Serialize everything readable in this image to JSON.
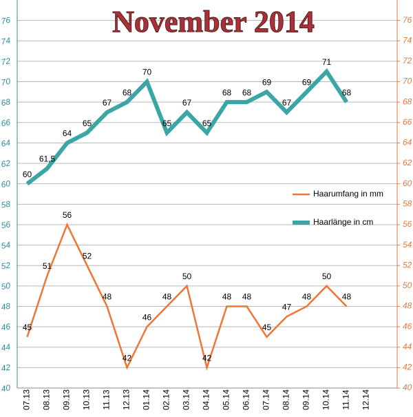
{
  "chart_data": {
    "type": "line",
    "title": "November 2014",
    "categories": [
      "07.13",
      "08.13",
      "09.13",
      "10.13",
      "11.13",
      "12.13",
      "01.14",
      "02.14",
      "03.14",
      "04.14",
      "05.14",
      "06.14",
      "07.14",
      "08.14",
      "09.14",
      "10.14",
      "11.14",
      "12.14"
    ],
    "series": [
      {
        "name": "Haarumfang in mm",
        "color": "#f07432",
        "axis": "y2",
        "values": [
          45,
          51,
          56,
          52,
          48,
          42,
          46,
          48,
          50,
          42,
          48,
          48,
          45,
          47,
          48,
          50,
          48,
          null
        ]
      },
      {
        "name": "Haarlänge in cm",
        "color": "#3aa6a6",
        "values": [
          60,
          61.5,
          64,
          65,
          67,
          68,
          70,
          65,
          67,
          65,
          68,
          68,
          69,
          67,
          69,
          71,
          68,
          null
        ],
        "value_labels": [
          "60",
          "61,5",
          "64",
          "65",
          "67",
          "68",
          "70",
          "65",
          "67",
          "65",
          "68",
          "68",
          "69",
          "67",
          "69",
          "71",
          "68",
          null
        ]
      }
    ],
    "ylim": [
      40,
      78
    ],
    "yticks": [
      40,
      42,
      44,
      46,
      48,
      50,
      52,
      54,
      56,
      58,
      60,
      62,
      64,
      66,
      68,
      70,
      72,
      74,
      76
    ],
    "y2lim": [
      40,
      78
    ],
    "y2ticks": [
      40,
      42,
      44,
      46,
      48,
      50,
      52,
      54,
      56,
      58,
      60,
      62,
      64,
      66,
      68,
      70,
      72,
      74,
      76
    ],
    "grid": true
  }
}
